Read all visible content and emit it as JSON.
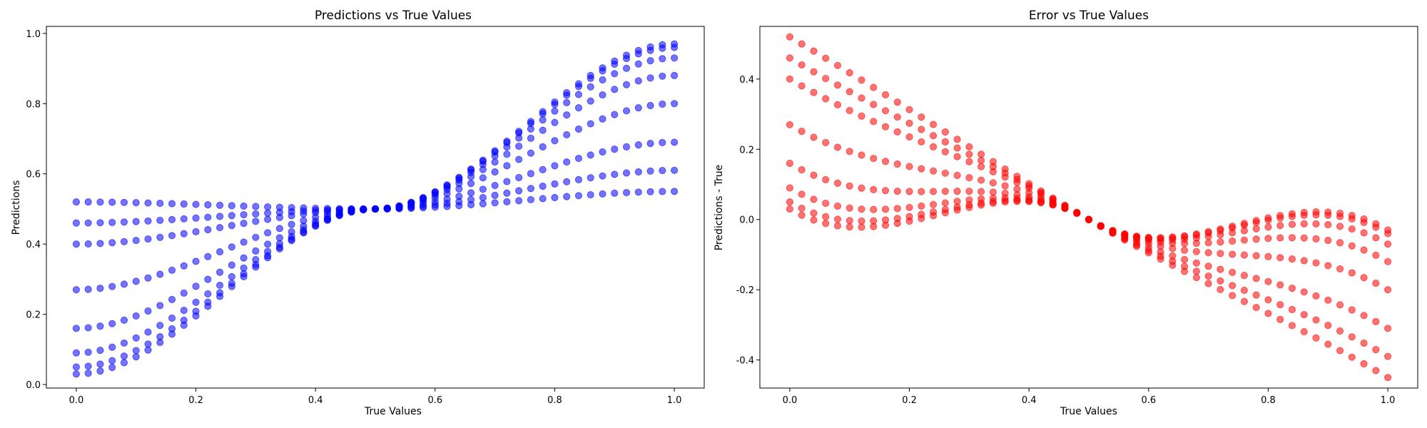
{
  "chart_data": [
    {
      "type": "scatter",
      "title": "Predictions vs True Values",
      "xlabel": "True Values",
      "ylabel": "Predictions",
      "xlim": [
        -0.05,
        1.05
      ],
      "ylim": [
        -0.01,
        1.02
      ],
      "xticks": [
        "0.0",
        "0.2",
        "0.4",
        "0.6",
        "0.8",
        "1.0"
      ],
      "yticks": [
        "0.0",
        "0.2",
        "0.4",
        "0.6",
        "0.8",
        "1.0"
      ],
      "grid": false,
      "color": "#0000ff",
      "alpha": 0.55,
      "series": [
        {
          "model": "blend",
          "anchors": [
            [
              0.0,
              0.52
            ],
            [
              0.5,
              0.5
            ],
            [
              1.0,
              0.55
            ]
          ]
        },
        {
          "model": "blend",
          "anchors": [
            [
              0.0,
              0.46
            ],
            [
              0.5,
              0.5
            ],
            [
              1.0,
              0.61
            ]
          ]
        },
        {
          "model": "blend",
          "anchors": [
            [
              0.0,
              0.4
            ],
            [
              0.5,
              0.5
            ],
            [
              1.0,
              0.69
            ]
          ]
        },
        {
          "model": "blend",
          "anchors": [
            [
              0.0,
              0.27
            ],
            [
              0.5,
              0.5
            ],
            [
              1.0,
              0.8
            ]
          ]
        },
        {
          "model": "blend",
          "anchors": [
            [
              0.0,
              0.16
            ],
            [
              0.5,
              0.5
            ],
            [
              1.0,
              0.88
            ]
          ]
        },
        {
          "model": "blend",
          "anchors": [
            [
              0.0,
              0.09
            ],
            [
              0.5,
              0.5
            ],
            [
              1.0,
              0.93
            ]
          ]
        },
        {
          "model": "blend",
          "anchors": [
            [
              0.0,
              0.05
            ],
            [
              0.5,
              0.5
            ],
            [
              1.0,
              0.96
            ]
          ]
        },
        {
          "model": "blend",
          "anchors": [
            [
              0.0,
              0.03
            ],
            [
              0.5,
              0.5
            ],
            [
              1.0,
              0.97
            ]
          ]
        }
      ]
    },
    {
      "type": "scatter",
      "title": "Error vs True Values",
      "xlabel": "True Values",
      "ylabel": "Predictions - True",
      "xlim": [
        -0.05,
        1.05
      ],
      "ylim": [
        -0.48,
        0.55
      ],
      "xticks": [
        "0.0",
        "0.2",
        "0.4",
        "0.6",
        "0.8",
        "1.0"
      ],
      "yticks": [
        "-0.4",
        "-0.2",
        "0.0",
        "0.2",
        "0.4"
      ],
      "grid": false,
      "color": "#ff0000",
      "alpha": 0.55,
      "series": [
        {
          "model": "blend-minus-x",
          "anchors": [
            [
              0.0,
              0.52
            ],
            [
              0.5,
              0.5
            ],
            [
              1.0,
              0.55
            ]
          ]
        },
        {
          "model": "blend-minus-x",
          "anchors": [
            [
              0.0,
              0.46
            ],
            [
              0.5,
              0.5
            ],
            [
              1.0,
              0.61
            ]
          ]
        },
        {
          "model": "blend-minus-x",
          "anchors": [
            [
              0.0,
              0.4
            ],
            [
              0.5,
              0.5
            ],
            [
              1.0,
              0.69
            ]
          ]
        },
        {
          "model": "blend-minus-x",
          "anchors": [
            [
              0.0,
              0.27
            ],
            [
              0.5,
              0.5
            ],
            [
              1.0,
              0.8
            ]
          ]
        },
        {
          "model": "blend-minus-x",
          "anchors": [
            [
              0.0,
              0.16
            ],
            [
              0.5,
              0.5
            ],
            [
              1.0,
              0.88
            ]
          ]
        },
        {
          "model": "blend-minus-x",
          "anchors": [
            [
              0.0,
              0.09
            ],
            [
              0.5,
              0.5
            ],
            [
              1.0,
              0.93
            ]
          ]
        },
        {
          "model": "blend-minus-x",
          "anchors": [
            [
              0.0,
              0.05
            ],
            [
              0.5,
              0.5
            ],
            [
              1.0,
              0.96
            ]
          ]
        },
        {
          "model": "blend-minus-x",
          "anchors": [
            [
              0.0,
              0.03
            ],
            [
              0.5,
              0.5
            ],
            [
              1.0,
              0.97
            ]
          ]
        }
      ]
    }
  ]
}
